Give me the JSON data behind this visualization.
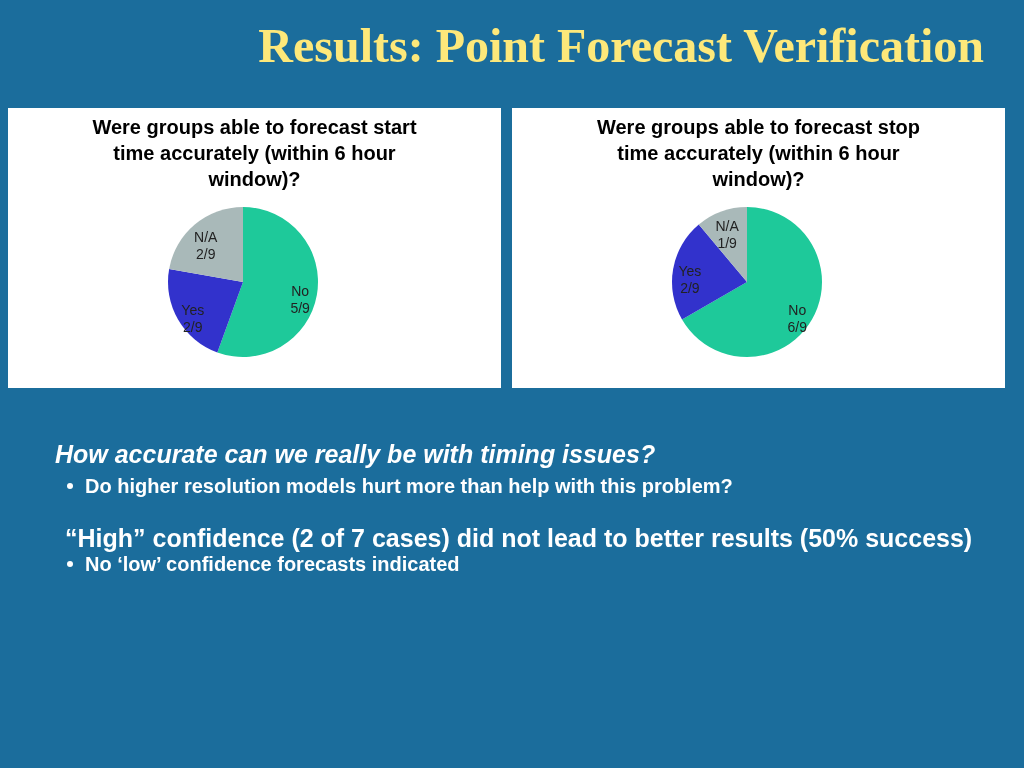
{
  "chart_data": [
    {
      "type": "pie",
      "title": "Were groups able to forecast start time accurately (within 6 hour window)?",
      "categories": [
        "No",
        "Yes",
        "N/A"
      ],
      "values": [
        55.56,
        22.22,
        22.22
      ],
      "value_labels": [
        "5/9",
        "2/9",
        "2/9"
      ],
      "colors": [
        "#1ec99a",
        "#3232cc",
        "#a9b9b9"
      ]
    },
    {
      "type": "pie",
      "title": "Were groups able to forecast stop time accurately (within 6 hour window)?",
      "categories": [
        "No",
        "Yes",
        "N/A"
      ],
      "values": [
        66.67,
        22.22,
        11.11
      ],
      "value_labels": [
        "6/9",
        "2/9",
        "1/9"
      ],
      "colors": [
        "#1ec99a",
        "#3232cc",
        "#a9b9b9"
      ]
    },
    {
      "type": "other",
      "title": "Results: Point Forecast Verification",
      "annotations": [
        "How accurate can we really be with timing issues?",
        "Do higher resolution models hurt more than help with this problem?",
        "“High” confidence (2 of 7 cases) did not lead to better results (50% success)",
        "No ‘low’ confidence forecasts indicated"
      ]
    }
  ]
}
